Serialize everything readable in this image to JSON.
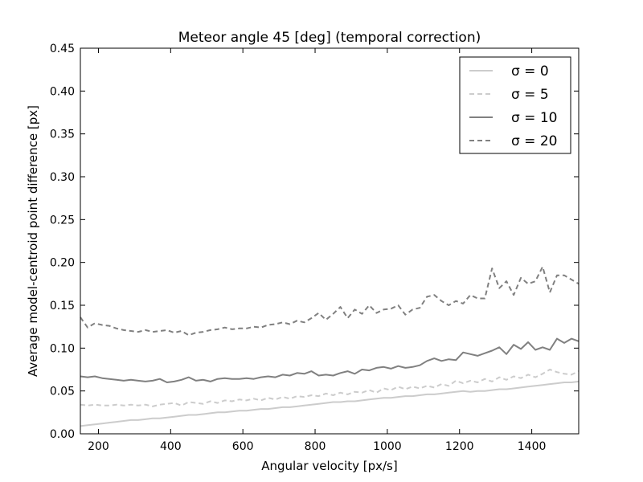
{
  "chart_data": {
    "type": "line",
    "title": "Meteor angle 45 [deg] (temporal correction)",
    "xlabel": "Angular velocity [px/s]",
    "ylabel": "Average model-centroid point difference [px]",
    "xlim": [
      150,
      1530
    ],
    "ylim": [
      0.0,
      0.45
    ],
    "xticks": [
      200,
      400,
      600,
      800,
      1000,
      1200,
      1400
    ],
    "xtick_labels": [
      "200",
      "400",
      "600",
      "800",
      "1000",
      "1200",
      "1400"
    ],
    "yticks": [
      0.0,
      0.05,
      0.1,
      0.15,
      0.2,
      0.25,
      0.3,
      0.35,
      0.4,
      0.45
    ],
    "ytick_labels": [
      "0.00",
      "0.05",
      "0.10",
      "0.15",
      "0.20",
      "0.25",
      "0.30",
      "0.35",
      "0.40",
      "0.45"
    ],
    "grid": false,
    "legend_position": "top-right",
    "x": [
      150,
      170,
      190,
      210,
      230,
      250,
      270,
      290,
      310,
      330,
      350,
      370,
      390,
      410,
      430,
      450,
      470,
      490,
      510,
      530,
      550,
      570,
      590,
      610,
      630,
      650,
      670,
      690,
      710,
      730,
      750,
      770,
      790,
      810,
      830,
      850,
      870,
      890,
      910,
      930,
      950,
      970,
      990,
      1010,
      1030,
      1050,
      1070,
      1090,
      1110,
      1130,
      1150,
      1170,
      1190,
      1210,
      1230,
      1250,
      1270,
      1290,
      1310,
      1330,
      1350,
      1370,
      1390,
      1410,
      1430,
      1450,
      1470,
      1490,
      1510,
      1530
    ],
    "series": [
      {
        "name": "σ = 0",
        "color": "#cccccc",
        "dash": "solid",
        "values": [
          0.009,
          0.01,
          0.011,
          0.012,
          0.013,
          0.014,
          0.015,
          0.016,
          0.016,
          0.017,
          0.018,
          0.018,
          0.019,
          0.02,
          0.021,
          0.022,
          0.022,
          0.023,
          0.024,
          0.025,
          0.025,
          0.026,
          0.027,
          0.027,
          0.028,
          0.029,
          0.029,
          0.03,
          0.031,
          0.031,
          0.032,
          0.033,
          0.034,
          0.035,
          0.036,
          0.037,
          0.037,
          0.038,
          0.038,
          0.039,
          0.04,
          0.041,
          0.042,
          0.042,
          0.043,
          0.044,
          0.044,
          0.045,
          0.046,
          0.046,
          0.047,
          0.048,
          0.049,
          0.05,
          0.049,
          0.05,
          0.05,
          0.051,
          0.052,
          0.052,
          0.053,
          0.054,
          0.055,
          0.056,
          0.057,
          0.058,
          0.059,
          0.06,
          0.06,
          0.061
        ]
      },
      {
        "name": "σ = 5",
        "color": "#cccccc",
        "dash": "dashed",
        "values": [
          0.034,
          0.033,
          0.034,
          0.033,
          0.033,
          0.034,
          0.033,
          0.034,
          0.033,
          0.034,
          0.032,
          0.034,
          0.035,
          0.036,
          0.033,
          0.037,
          0.036,
          0.035,
          0.038,
          0.036,
          0.039,
          0.038,
          0.04,
          0.039,
          0.041,
          0.039,
          0.042,
          0.04,
          0.043,
          0.041,
          0.044,
          0.043,
          0.045,
          0.044,
          0.047,
          0.045,
          0.048,
          0.046,
          0.049,
          0.048,
          0.051,
          0.048,
          0.053,
          0.051,
          0.055,
          0.052,
          0.055,
          0.053,
          0.056,
          0.054,
          0.058,
          0.056,
          0.062,
          0.059,
          0.062,
          0.06,
          0.064,
          0.061,
          0.066,
          0.063,
          0.067,
          0.065,
          0.069,
          0.066,
          0.07,
          0.075,
          0.072,
          0.07,
          0.069,
          0.073
        ]
      },
      {
        "name": "σ = 10",
        "color": "#808080",
        "dash": "solid",
        "values": [
          0.067,
          0.066,
          0.067,
          0.065,
          0.064,
          0.063,
          0.062,
          0.063,
          0.062,
          0.061,
          0.062,
          0.064,
          0.06,
          0.061,
          0.063,
          0.066,
          0.062,
          0.063,
          0.061,
          0.064,
          0.065,
          0.064,
          0.064,
          0.065,
          0.064,
          0.066,
          0.067,
          0.066,
          0.069,
          0.068,
          0.071,
          0.07,
          0.073,
          0.068,
          0.069,
          0.068,
          0.071,
          0.073,
          0.07,
          0.075,
          0.074,
          0.077,
          0.078,
          0.076,
          0.079,
          0.077,
          0.078,
          0.08,
          0.085,
          0.088,
          0.085,
          0.087,
          0.086,
          0.095,
          0.093,
          0.091,
          0.094,
          0.097,
          0.101,
          0.093,
          0.104,
          0.099,
          0.107,
          0.098,
          0.101,
          0.098,
          0.111,
          0.106,
          0.111,
          0.108
        ]
      },
      {
        "name": "σ = 20",
        "color": "#808080",
        "dash": "dashed",
        "values": [
          0.136,
          0.124,
          0.129,
          0.127,
          0.126,
          0.123,
          0.121,
          0.12,
          0.119,
          0.121,
          0.119,
          0.12,
          0.121,
          0.118,
          0.12,
          0.115,
          0.118,
          0.119,
          0.121,
          0.122,
          0.124,
          0.122,
          0.123,
          0.123,
          0.125,
          0.124,
          0.127,
          0.128,
          0.13,
          0.128,
          0.132,
          0.13,
          0.135,
          0.141,
          0.133,
          0.14,
          0.148,
          0.135,
          0.145,
          0.14,
          0.15,
          0.141,
          0.145,
          0.146,
          0.15,
          0.139,
          0.145,
          0.147,
          0.16,
          0.162,
          0.155,
          0.15,
          0.155,
          0.152,
          0.162,
          0.158,
          0.158,
          0.193,
          0.17,
          0.178,
          0.162,
          0.182,
          0.175,
          0.178,
          0.195,
          0.165,
          0.185,
          0.185,
          0.18,
          0.175
        ]
      }
    ]
  }
}
